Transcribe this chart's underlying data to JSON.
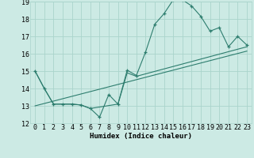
{
  "bg_color": "#cceae4",
  "grid_color": "#aad4cc",
  "line_color": "#2d7d6e",
  "xlabel": "Humidex (Indice chaleur)",
  "xlim": [
    -0.5,
    23.5
  ],
  "ylim": [
    12,
    19
  ],
  "yticks": [
    12,
    13,
    14,
    15,
    16,
    17,
    18,
    19
  ],
  "xticks": [
    0,
    1,
    2,
    3,
    4,
    5,
    6,
    7,
    8,
    9,
    10,
    11,
    12,
    13,
    14,
    15,
    16,
    17,
    18,
    19,
    20,
    21,
    22,
    23
  ],
  "line1_x": [
    0,
    1,
    2,
    3,
    4,
    5,
    6,
    7,
    8,
    9,
    10,
    11,
    12,
    13,
    14,
    15,
    16,
    17,
    18,
    19,
    20,
    21,
    22,
    23
  ],
  "line1_y": [
    15.0,
    14.0,
    13.1,
    13.1,
    13.1,
    13.05,
    12.85,
    12.35,
    13.65,
    13.1,
    15.05,
    14.75,
    16.1,
    17.7,
    18.3,
    19.1,
    19.1,
    18.75,
    18.15,
    17.3,
    17.5,
    16.4,
    17.0,
    16.5
  ],
  "line2_x": [
    0,
    1,
    2,
    3,
    4,
    5,
    6,
    9,
    10,
    11,
    23
  ],
  "line2_y": [
    15.0,
    14.0,
    13.1,
    13.1,
    13.1,
    13.05,
    12.85,
    13.1,
    14.9,
    14.7,
    16.4
  ],
  "line3_x": [
    0,
    23
  ],
  "line3_y": [
    13.0,
    16.15
  ],
  "xlabel_fontsize": 6.5,
  "tick_fontsize": 6
}
